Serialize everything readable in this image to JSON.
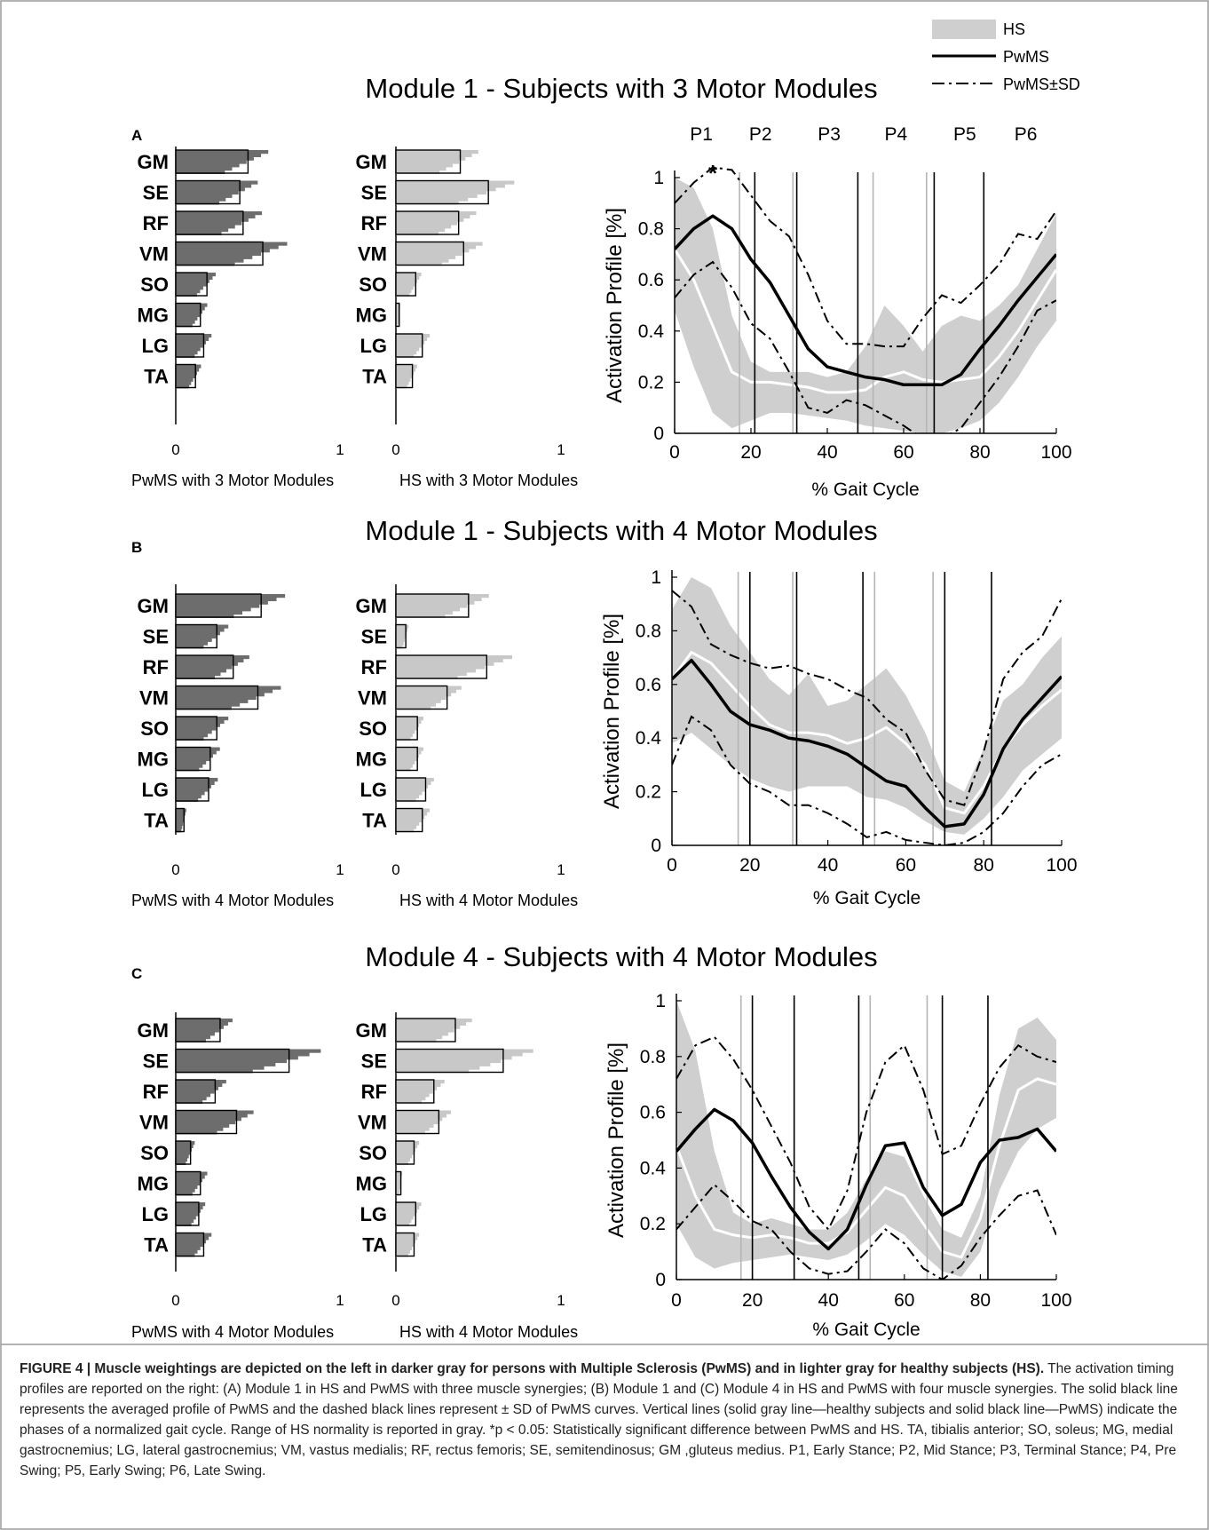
{
  "legend": {
    "items": [
      {
        "label": "HS"
      },
      {
        "label": "PwMS"
      },
      {
        "label": "PwMS±SD"
      }
    ]
  },
  "panels": [
    {
      "letter": "A",
      "title": "Module 1 - Subjects with 3 Motor Modules",
      "pw_caption": "PwMS with 3 Motor Modules",
      "hs_caption": "HS with 3 Motor Modules"
    },
    {
      "letter": "B",
      "title": "Module 1 - Subjects with 4 Motor Modules",
      "pw_caption": "PwMS with 4 Motor Modules",
      "hs_caption": "HS with 4 Motor Modules"
    },
    {
      "letter": "C",
      "title": "Module 4 - Subjects with 4 Motor Modules",
      "pw_caption": "PwMS with 4 Motor Modules",
      "hs_caption": "HS with 4 Motor Modules"
    }
  ],
  "colors": {
    "pwms_bar": "#6d6d6d",
    "hs_bar": "#c8c8c8",
    "hs_band": "#cfcfcf",
    "pwms_line": "#000000"
  },
  "chart_data": [
    {
      "type": "bar",
      "panel": "A",
      "group": "PwMS",
      "categories": [
        "GM",
        "SE",
        "RF",
        "VM",
        "SO",
        "MG",
        "LG",
        "TA"
      ],
      "values": [
        0.44,
        0.39,
        0.41,
        0.53,
        0.19,
        0.15,
        0.17,
        0.12
      ],
      "x_ticks": [
        "0",
        "1"
      ],
      "xlim": [
        0,
        1
      ]
    },
    {
      "type": "bar",
      "panel": "A",
      "group": "HS",
      "categories": [
        "GM",
        "SE",
        "RF",
        "VM",
        "SO",
        "MG",
        "LG",
        "TA"
      ],
      "values": [
        0.39,
        0.56,
        0.38,
        0.41,
        0.12,
        0.02,
        0.16,
        0.1
      ],
      "x_ticks": [
        "0",
        "1"
      ],
      "xlim": [
        0,
        1
      ]
    },
    {
      "type": "line",
      "panel": "A",
      "xlabel": "% Gait Cycle",
      "ylabel": "Activation Profile [%]",
      "x_ticks": [
        0,
        20,
        40,
        60,
        80,
        100
      ],
      "y_ticks": [
        "0",
        "0.2",
        "0.4",
        "0.6",
        "0.8",
        "1"
      ],
      "xlim": [
        0,
        100
      ],
      "ylim": [
        0,
        1
      ],
      "phase_labels": [
        "P1",
        "P2",
        "P3",
        "P4",
        "P5",
        "P6"
      ],
      "significance_marker": {
        "label": "*",
        "x": 10
      },
      "phase_lines_hs": [
        17,
        31,
        52,
        66
      ],
      "phase_lines_pwms": [
        21,
        32,
        48,
        68,
        81
      ],
      "x": [
        0,
        5,
        10,
        15,
        20,
        25,
        30,
        35,
        40,
        45,
        50,
        55,
        60,
        65,
        70,
        75,
        80,
        85,
        90,
        95,
        100
      ],
      "series": [
        {
          "name": "PwMS",
          "values": [
            0.72,
            0.8,
            0.85,
            0.8,
            0.68,
            0.59,
            0.46,
            0.33,
            0.26,
            0.24,
            0.22,
            0.21,
            0.19,
            0.19,
            0.19,
            0.23,
            0.33,
            0.42,
            0.52,
            0.61,
            0.7
          ]
        },
        {
          "name": "PwMS±SD",
          "values": [
            0.9,
            0.98,
            1.04,
            1.03,
            0.93,
            0.83,
            0.77,
            0.62,
            0.44,
            0.35,
            0.35,
            0.34,
            0.34,
            0.45,
            0.54,
            0.51,
            0.58,
            0.66,
            0.78,
            0.76,
            0.87
          ]
        },
        {
          "name": "PwMS±SD",
          "values": [
            0.53,
            0.62,
            0.67,
            0.57,
            0.43,
            0.37,
            0.24,
            0.1,
            0.08,
            0.13,
            0.11,
            0.07,
            0.03,
            -0.02,
            -0.02,
            0.02,
            0.12,
            0.22,
            0.34,
            0.48,
            0.52
          ]
        },
        {
          "name": "HS",
          "values": [
            0.72,
            0.6,
            0.42,
            0.24,
            0.2,
            0.2,
            0.19,
            0.18,
            0.16,
            0.16,
            0.17,
            0.22,
            0.24,
            0.21,
            0.2,
            0.21,
            0.22,
            0.3,
            0.4,
            0.52,
            0.64
          ],
          "upper": [
            1.0,
            0.96,
            0.8,
            0.46,
            0.28,
            0.24,
            0.24,
            0.24,
            0.22,
            0.24,
            0.34,
            0.5,
            0.42,
            0.32,
            0.42,
            0.46,
            0.44,
            0.5,
            0.58,
            0.72,
            0.86
          ],
          "lower": [
            0.48,
            0.26,
            0.08,
            0.02,
            0.05,
            0.08,
            0.08,
            0.07,
            0.06,
            0.05,
            0.03,
            0.02,
            0.01,
            0.0,
            0.0,
            0.02,
            0.05,
            0.12,
            0.22,
            0.34,
            0.44
          ]
        }
      ]
    },
    {
      "type": "bar",
      "panel": "B",
      "group": "PwMS",
      "categories": [
        "GM",
        "SE",
        "RF",
        "VM",
        "SO",
        "MG",
        "LG",
        "TA"
      ],
      "values": [
        0.52,
        0.25,
        0.35,
        0.5,
        0.25,
        0.21,
        0.2,
        0.05
      ],
      "x_ticks": [
        "0",
        "1"
      ],
      "xlim": [
        0,
        1
      ]
    },
    {
      "type": "bar",
      "panel": "B",
      "group": "HS",
      "categories": [
        "GM",
        "SE",
        "RF",
        "VM",
        "SO",
        "MG",
        "LG",
        "TA"
      ],
      "values": [
        0.44,
        0.06,
        0.55,
        0.31,
        0.13,
        0.13,
        0.18,
        0.16
      ],
      "x_ticks": [
        "0",
        "1"
      ],
      "xlim": [
        0,
        1
      ]
    },
    {
      "type": "line",
      "panel": "B",
      "xlabel": "% Gait Cycle",
      "ylabel": "Activation Profile [%]",
      "x_ticks": [
        0,
        20,
        40,
        60,
        80,
        100
      ],
      "y_ticks": [
        "0",
        "0.2",
        "0.4",
        "0.6",
        "0.8",
        "1"
      ],
      "xlim": [
        0,
        100
      ],
      "ylim": [
        0,
        1
      ],
      "phase_lines_hs": [
        17,
        31,
        52,
        67
      ],
      "phase_lines_pwms": [
        20,
        32,
        49,
        70,
        82
      ],
      "x": [
        0,
        5,
        10,
        15,
        20,
        25,
        30,
        35,
        40,
        45,
        50,
        55,
        60,
        65,
        70,
        75,
        80,
        85,
        90,
        95,
        100
      ],
      "series": [
        {
          "name": "PwMS",
          "values": [
            0.62,
            0.69,
            0.6,
            0.5,
            0.45,
            0.43,
            0.4,
            0.39,
            0.37,
            0.34,
            0.29,
            0.24,
            0.22,
            0.14,
            0.07,
            0.08,
            0.19,
            0.36,
            0.47,
            0.55,
            0.63
          ]
        },
        {
          "name": "PwMS±SD",
          "values": [
            0.95,
            0.89,
            0.75,
            0.71,
            0.68,
            0.66,
            0.67,
            0.64,
            0.62,
            0.58,
            0.55,
            0.47,
            0.42,
            0.28,
            0.17,
            0.15,
            0.35,
            0.62,
            0.72,
            0.78,
            0.92
          ]
        },
        {
          "name": "PwMS±SD",
          "values": [
            0.3,
            0.48,
            0.43,
            0.3,
            0.23,
            0.2,
            0.15,
            0.15,
            0.12,
            0.08,
            0.03,
            0.05,
            0.02,
            0.01,
            0.0,
            0.01,
            0.05,
            0.12,
            0.22,
            0.3,
            0.34
          ]
        },
        {
          "name": "HS",
          "values": [
            0.62,
            0.72,
            0.68,
            0.6,
            0.52,
            0.45,
            0.42,
            0.42,
            0.41,
            0.38,
            0.4,
            0.44,
            0.38,
            0.3,
            0.14,
            0.12,
            0.22,
            0.36,
            0.45,
            0.52,
            0.58
          ],
          "upper": [
            0.88,
            1.0,
            0.96,
            0.82,
            0.72,
            0.62,
            0.56,
            0.64,
            0.52,
            0.54,
            0.6,
            0.66,
            0.56,
            0.42,
            0.24,
            0.2,
            0.36,
            0.54,
            0.6,
            0.7,
            0.78
          ],
          "lower": [
            0.38,
            0.42,
            0.36,
            0.3,
            0.25,
            0.22,
            0.2,
            0.22,
            0.22,
            0.22,
            0.18,
            0.17,
            0.14,
            0.09,
            0.05,
            0.04,
            0.1,
            0.18,
            0.28,
            0.34,
            0.4
          ]
        }
      ]
    },
    {
      "type": "bar",
      "panel": "C",
      "group": "PwMS",
      "categories": [
        "GM",
        "SE",
        "RF",
        "VM",
        "SO",
        "MG",
        "LG",
        "TA"
      ],
      "values": [
        0.27,
        0.69,
        0.24,
        0.37,
        0.09,
        0.15,
        0.14,
        0.17
      ],
      "x_ticks": [
        "0",
        "1"
      ],
      "xlim": [
        0,
        1
      ]
    },
    {
      "type": "bar",
      "panel": "C",
      "group": "HS",
      "categories": [
        "GM",
        "SE",
        "RF",
        "VM",
        "SO",
        "MG",
        "LG",
        "TA"
      ],
      "values": [
        0.36,
        0.65,
        0.23,
        0.26,
        0.11,
        0.03,
        0.12,
        0.11
      ],
      "x_ticks": [
        "0",
        "1"
      ],
      "xlim": [
        0,
        1
      ]
    },
    {
      "type": "line",
      "panel": "C",
      "xlabel": "% Gait Cycle",
      "ylabel": "Activation Profile [%]",
      "x_ticks": [
        0,
        20,
        40,
        60,
        80,
        100
      ],
      "y_ticks": [
        "0",
        "0.2",
        "0.4",
        "0.6",
        "0.8",
        "1"
      ],
      "xlim": [
        0,
        100
      ],
      "ylim": [
        0,
        1
      ],
      "phase_lines_hs": [
        17,
        31,
        51,
        66
      ],
      "phase_lines_pwms": [
        20,
        31,
        48,
        70,
        82
      ],
      "x": [
        0,
        5,
        10,
        15,
        20,
        25,
        30,
        35,
        40,
        45,
        50,
        55,
        60,
        65,
        70,
        75,
        80,
        85,
        90,
        95,
        100
      ],
      "series": [
        {
          "name": "PwMS",
          "values": [
            0.46,
            0.54,
            0.61,
            0.57,
            0.49,
            0.37,
            0.26,
            0.17,
            0.11,
            0.18,
            0.34,
            0.48,
            0.49,
            0.33,
            0.23,
            0.27,
            0.42,
            0.5,
            0.51,
            0.54,
            0.46
          ]
        },
        {
          "name": "PwMS±SD",
          "values": [
            0.72,
            0.84,
            0.87,
            0.79,
            0.68,
            0.55,
            0.42,
            0.26,
            0.18,
            0.32,
            0.6,
            0.78,
            0.84,
            0.68,
            0.45,
            0.48,
            0.63,
            0.76,
            0.84,
            0.8,
            0.78
          ]
        },
        {
          "name": "PwMS±SD",
          "values": [
            0.18,
            0.26,
            0.34,
            0.28,
            0.21,
            0.18,
            0.1,
            0.04,
            0.02,
            0.03,
            0.1,
            0.18,
            0.13,
            0.04,
            0.0,
            0.05,
            0.15,
            0.23,
            0.3,
            0.32,
            0.16
          ]
        },
        {
          "name": "HS",
          "values": [
            0.48,
            0.3,
            0.18,
            0.16,
            0.15,
            0.16,
            0.15,
            0.13,
            0.13,
            0.17,
            0.25,
            0.33,
            0.3,
            0.2,
            0.1,
            0.08,
            0.22,
            0.48,
            0.68,
            0.72,
            0.7
          ],
          "upper": [
            1.0,
            0.82,
            0.46,
            0.24,
            0.2,
            0.22,
            0.2,
            0.18,
            0.18,
            0.24,
            0.36,
            0.46,
            0.44,
            0.3,
            0.18,
            0.15,
            0.3,
            0.66,
            0.9,
            0.94,
            0.86
          ],
          "lower": [
            0.2,
            0.08,
            0.04,
            0.06,
            0.07,
            0.08,
            0.09,
            0.08,
            0.07,
            0.09,
            0.14,
            0.2,
            0.16,
            0.09,
            0.03,
            0.01,
            0.1,
            0.32,
            0.46,
            0.54,
            0.58
          ]
        }
      ]
    }
  ],
  "caption": {
    "bold_part": "FIGURE 4 | Muscle weightings are depicted on the left in darker gray for persons with Multiple Sclerosis (PwMS) and in lighter gray for healthy subjects (HS).",
    "text": "The activation timing profiles are reported on the right: (A) Module 1 in HS and PwMS with three muscle synergies; (B) Module 1 and (C) Module 4 in HS and PwMS with four muscle synergies. The solid black line represents the averaged profile of PwMS and the dashed black lines represent ± SD of PwMS curves. Vertical lines (solid gray line—healthy subjects and solid black line—PwMS) indicate the phases of a normalized gait cycle. Range of HS normality is reported in gray. *p < 0.05: Statistically significant difference between PwMS and HS. TA, tibialis anterior; SO, soleus; MG, medial gastrocnemius; LG, lateral gastrocnemius; VM, vastus medialis; RF, rectus femoris; SE, semitendinosus; GM ,gluteus medius. P1, Early Stance; P2, Mid Stance; P3, Terminal Stance; P4, Pre Swing; P5, Early Swing; P6, Late Swing."
  }
}
